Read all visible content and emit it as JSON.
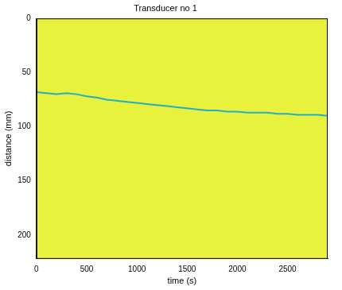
{
  "chart_data": {
    "type": "line",
    "title": "Transducer no 1",
    "x_label": "time (s)",
    "y_label": "distance (mm)",
    "x": [
      0,
      100,
      200,
      300,
      400,
      500,
      600,
      700,
      800,
      900,
      1000,
      1100,
      1200,
      1300,
      1400,
      1500,
      1600,
      1700,
      1800,
      1900,
      2000,
      2100,
      2200,
      2300,
      2400,
      2500,
      2600,
      2700,
      2800,
      2900
    ],
    "values": [
      68,
      69,
      70,
      69,
      70,
      72,
      73,
      75,
      76,
      77,
      78,
      79,
      80,
      81,
      82,
      83,
      84,
      85,
      85,
      86,
      86,
      87,
      87,
      87,
      88,
      88,
      89,
      89,
      89,
      90
    ],
    "color": "#1fb0c8",
    "xlim": [
      0,
      2900
    ],
    "xticks": [
      0,
      500,
      1000,
      1500,
      2000,
      2500
    ],
    "ylim": [
      0,
      222
    ],
    "yticks": [
      0,
      50,
      100,
      150,
      200
    ],
    "grid": false
  }
}
